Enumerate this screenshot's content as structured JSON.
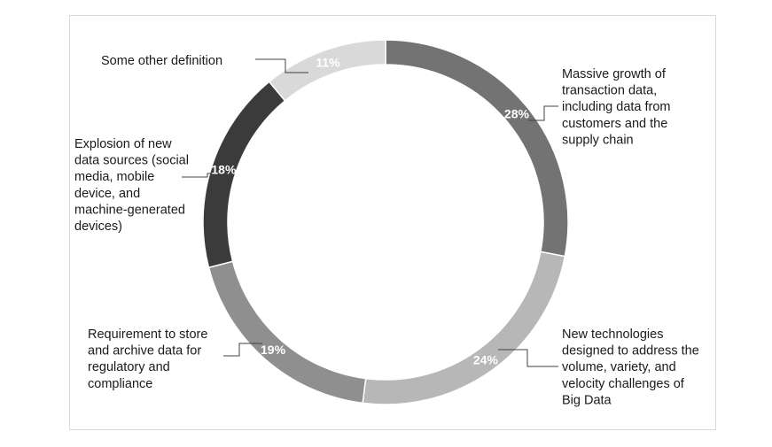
{
  "chart_data": {
    "type": "pie",
    "variant": "donut",
    "categories": [
      "Massive growth of transaction data, including data from customers and the supply chain",
      "New technologies designed to address the volume, variety, and velocity challenges of Big Data",
      "Requirement to store and archive data for regulatory and compliance",
      "Explosion of new data sources (social media, mobile device, and machine-generated devices)",
      "Some other definition"
    ],
    "values": [
      28,
      24,
      19,
      18,
      11
    ],
    "data_labels": [
      "28%",
      "24%",
      "19%",
      "18%",
      "11%"
    ],
    "category_label_lines": [
      [
        "Massive growth of",
        "transaction data,",
        "including data from",
        "customers and the",
        "supply chain"
      ],
      [
        "New technologies",
        "designed to address the",
        "volume, variety, and",
        "velocity challenges of",
        "Big Data"
      ],
      [
        "Requirement to store",
        "and archive data for",
        "regulatory and",
        "compliance"
      ],
      [
        "Explosion of new",
        "data sources (social",
        "media, mobile",
        "device, and",
        "machine-generated",
        "devices)"
      ],
      [
        "Some other definition"
      ]
    ],
    "colors": [
      "#737373",
      "#b7b7b7",
      "#8f8f8f",
      "#3b3b3b",
      "#d9d9d9"
    ],
    "slice_edge_color": "#ffffff",
    "legend": "none",
    "title": ""
  }
}
